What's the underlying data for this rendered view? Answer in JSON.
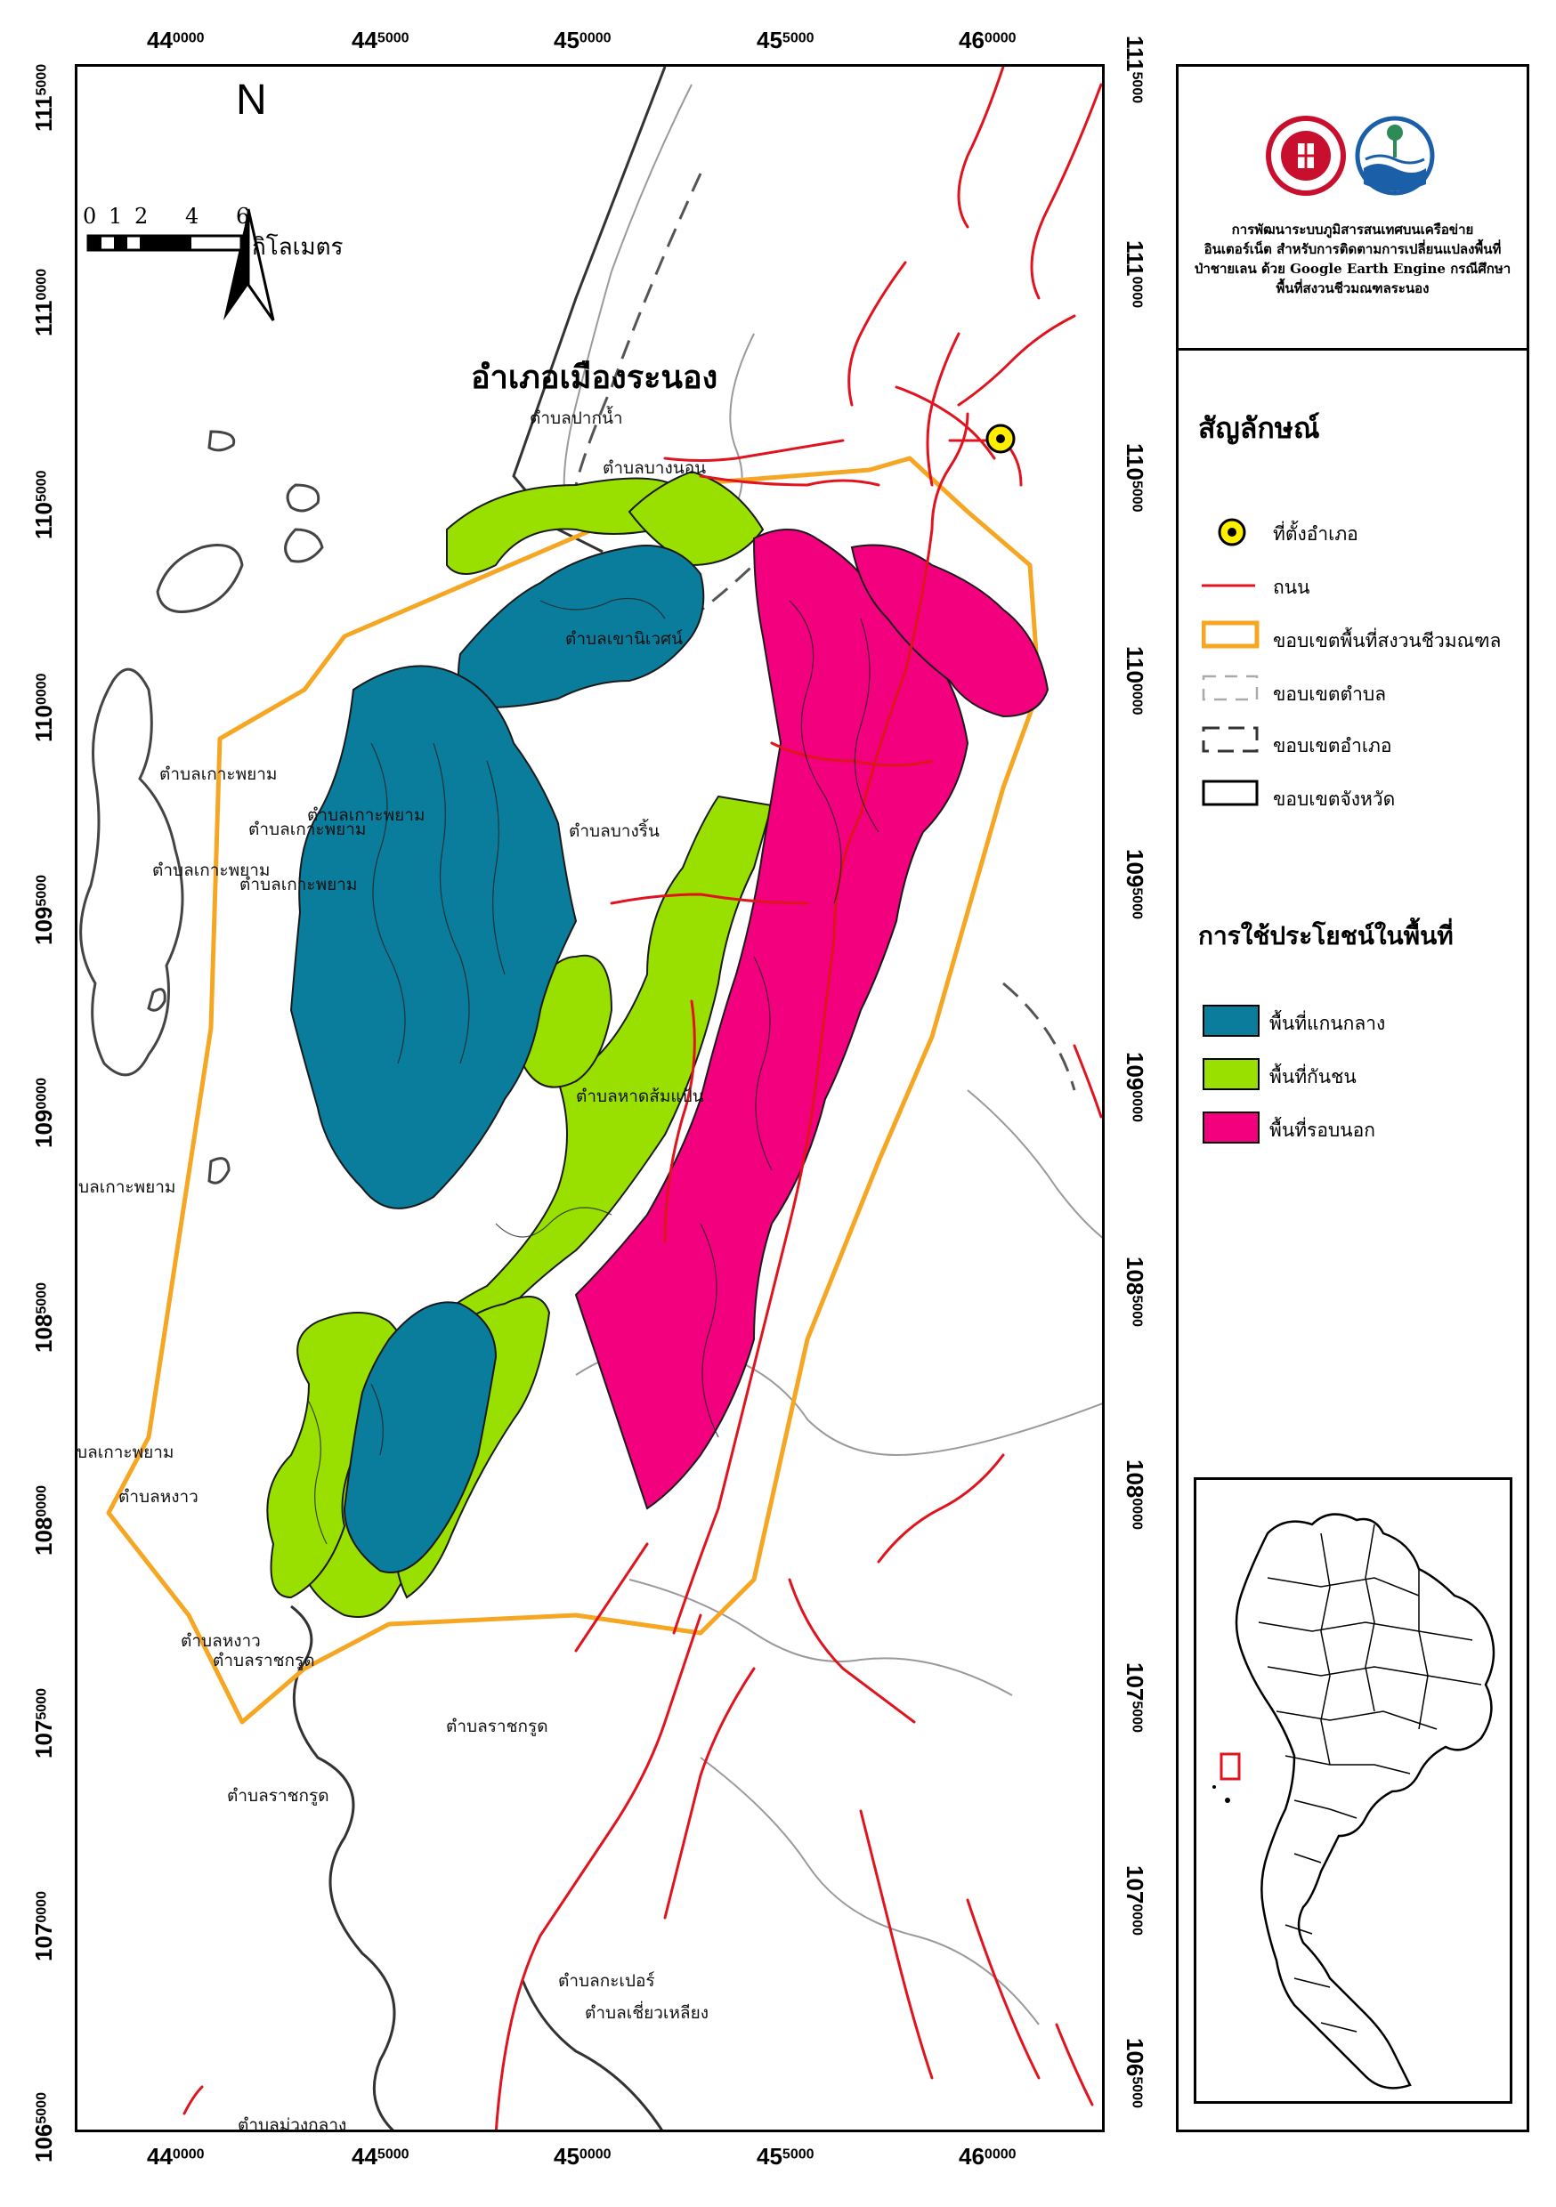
{
  "map": {
    "district_title": "อำเภอเมืองระนอง",
    "north_label": "N",
    "scale_bar": {
      "ticks": [
        "0",
        "1",
        "2",
        "4",
        "6"
      ],
      "unit": "กิโลเมตร"
    },
    "x_axis_ticks": [
      {
        "big": "44",
        "small": "0000"
      },
      {
        "big": "44",
        "small": "5000"
      },
      {
        "big": "45",
        "small": "0000"
      },
      {
        "big": "45",
        "small": "5000"
      },
      {
        "big": "46",
        "small": "0000"
      }
    ],
    "y_axis_ticks": [
      {
        "big": "111",
        "small": "5000"
      },
      {
        "big": "111",
        "small": "0000"
      },
      {
        "big": "110",
        "small": "5000"
      },
      {
        "big": "110",
        "small": "0000"
      },
      {
        "big": "109",
        "small": "5000"
      },
      {
        "big": "109",
        "small": "0000"
      },
      {
        "big": "108",
        "small": "5000"
      },
      {
        "big": "108",
        "small": "0000"
      },
      {
        "big": "107",
        "small": "5000"
      },
      {
        "big": "107",
        "small": "0000"
      },
      {
        "big": "106",
        "small": "5000"
      }
    ],
    "place_labels": [
      "ตำบลปากน้ำ",
      "ตำบลบางนอน",
      "ตำบลเขานิเวศน์",
      "ตำบลเกาะพยาม",
      "ตำบลเกาะพยาม",
      "ตำบลเกาะพยาม",
      "ตำบลเกาะพยาม",
      "ตำบลเกาะพยาม",
      "ตำบลบางริ้น",
      "ตำบลหาดส้มแป้น",
      "ตำบลเกาะพยาม",
      "ตำบลเกาะพยาม",
      "ตำบลหงาว",
      "ตำบลหงาว",
      "ตำบลราชกรูด",
      "ตำบลราชกรูด",
      "ตำบลราชกรูด",
      "ตำบลกะเปอร์",
      "ตำบลเชี่ยวเหลียง",
      "ตำบลม่วงกลาง"
    ]
  },
  "title_panel": {
    "lines": [
      "การพัฒนาระบบภูมิสารสนเทศบนเครือข่าย",
      "อินเตอร์เน็ต สำหรับการติดตามการเปลี่ยนแปลงพื้นที่",
      "ป่าชายเลน ด้วย Google Earth Engine กรณีศึกษา",
      "พื้นที่สงวนชีวมณฑลระนอง"
    ]
  },
  "legend": {
    "heading": "สัญลักษณ์",
    "items": [
      {
        "label": "ที่ตั้งอำเภอ",
        "symbol": "district-point"
      },
      {
        "label": "ถนน",
        "symbol": "road-line"
      },
      {
        "label": "ขอบเขตพื้นที่สงวนชีวมณฑล",
        "symbol": "reserve-boundary"
      },
      {
        "label": "ขอบเขตตำบล",
        "symbol": "subdistrict-boundary"
      },
      {
        "label": "ขอบเขตอำเภอ",
        "symbol": "district-boundary"
      },
      {
        "label": "ขอบเขตจังหวัด",
        "symbol": "province-boundary"
      }
    ],
    "landuse_heading": "การใช้ประโยชน์ในพื้นที่",
    "landuse_items": [
      {
        "label": "พื้นที่แกนกลาง",
        "color": "#0a7d9c"
      },
      {
        "label": "พื้นที่กันชน",
        "color": "#99e000"
      },
      {
        "label": "พื้นที่รอบนอก",
        "color": "#f2007e"
      }
    ]
  },
  "colors": {
    "core": "#0a7d9c",
    "buffer": "#99e000",
    "transition": "#f2007e",
    "road": "#e0141e",
    "reserve": "#f5a623",
    "point": "#ffee00"
  }
}
